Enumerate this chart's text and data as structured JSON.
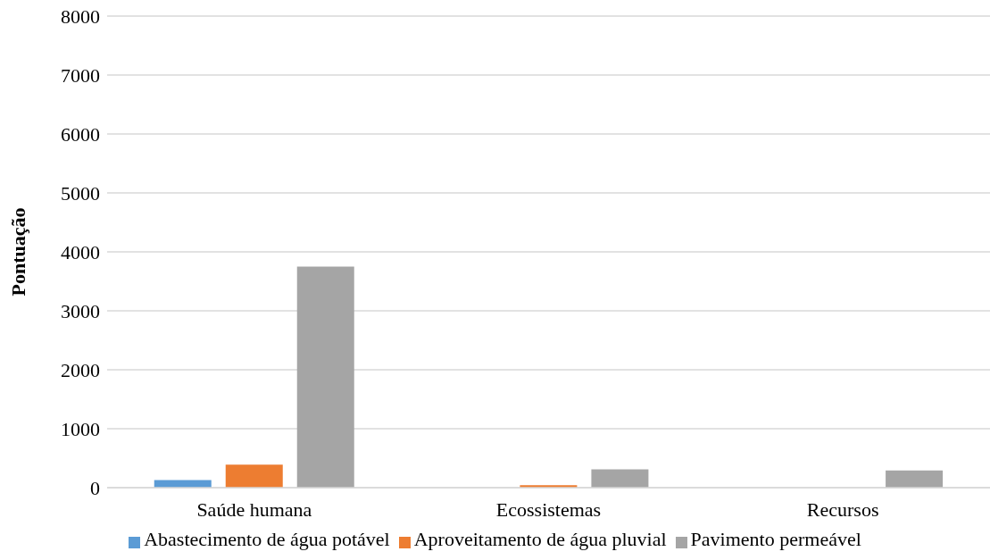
{
  "chart_data": {
    "type": "bar",
    "ylabel": "Pontuação",
    "categories": [
      "Saúde humana",
      "Ecossistemas",
      "Recursos"
    ],
    "series": [
      {
        "name": "Abastecimento de água potável",
        "color": "#5b9bd5",
        "values": [
          130,
          null,
          null
        ]
      },
      {
        "name": "Aproveitamento de água pluvial",
        "color": "#ed7d31",
        "values": [
          390,
          40,
          null
        ]
      },
      {
        "name": "Pavimento permeável",
        "color": "#a5a5a5",
        "values": [
          3750,
          310,
          290
        ]
      }
    ],
    "ylim": [
      0,
      8000
    ],
    "yticks": [
      0,
      1000,
      2000,
      3000,
      4000,
      5000,
      6000,
      7000,
      8000
    ],
    "grid": "y",
    "legend": "bottom"
  }
}
